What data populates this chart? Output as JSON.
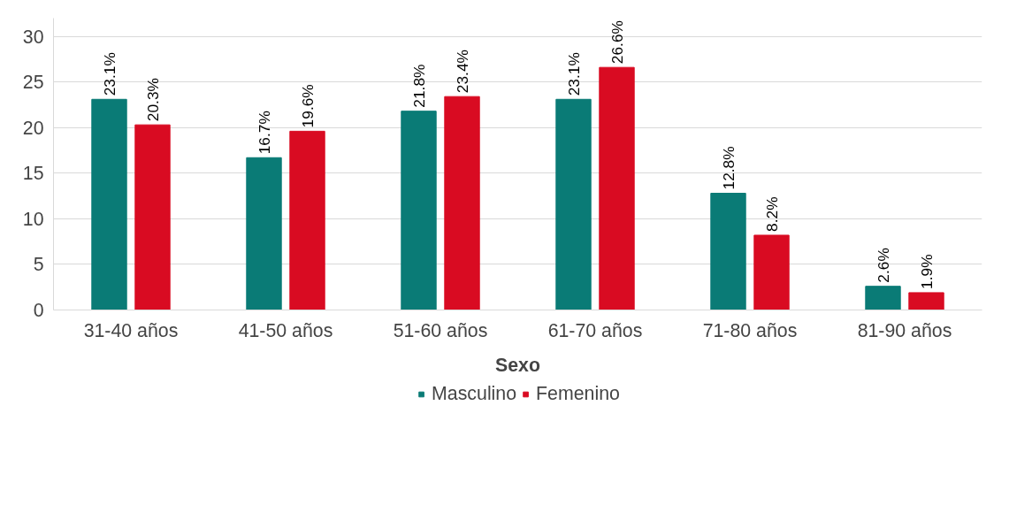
{
  "chart_data": {
    "type": "bar",
    "xlabel": "Sexo",
    "categories": [
      "31-40 años",
      "41-50 años",
      "51-60 años",
      "61-70 años",
      "71-80 años",
      "81-90 años"
    ],
    "series": [
      {
        "name": "Masculino",
        "color": "#0a7b76",
        "values": [
          23.1,
          16.7,
          21.8,
          23.1,
          12.8,
          2.6
        ],
        "value_labels": [
          "23.1%",
          "16.7%",
          "21.8%",
          "23.1%",
          "12.8%",
          "2.6%"
        ]
      },
      {
        "name": "Femenino",
        "color": "#d90b22",
        "values": [
          20.3,
          19.6,
          23.4,
          26.6,
          8.2,
          1.9
        ],
        "value_labels": [
          "20.3%",
          "19.6%",
          "23.4%",
          "26.6%",
          "8.2%",
          "1.9%"
        ]
      }
    ],
    "ylim": [
      0,
      32
    ],
    "yticks": [
      0,
      5,
      10,
      15,
      20,
      25,
      30
    ],
    "grid": "y",
    "legend": "bottom"
  }
}
